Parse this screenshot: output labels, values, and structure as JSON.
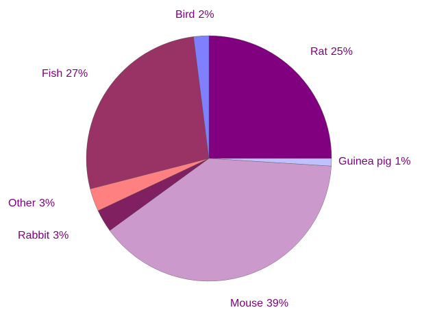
{
  "chart_data": {
    "type": "pie",
    "categories": [
      "Rat",
      "Guinea pig",
      "Mouse",
      "Rabbit",
      "Other",
      "Fish",
      "Bird"
    ],
    "values": [
      25,
      1,
      39,
      3,
      3,
      27,
      2
    ],
    "value_labels": [
      "25%",
      "1%",
      "39%",
      "3%",
      "3%",
      "27%",
      "2%"
    ],
    "colors": [
      "#800080",
      "#c0c0ff",
      "#cc99cc",
      "#802060",
      "#ff8080",
      "#993366",
      "#8080ff"
    ]
  }
}
